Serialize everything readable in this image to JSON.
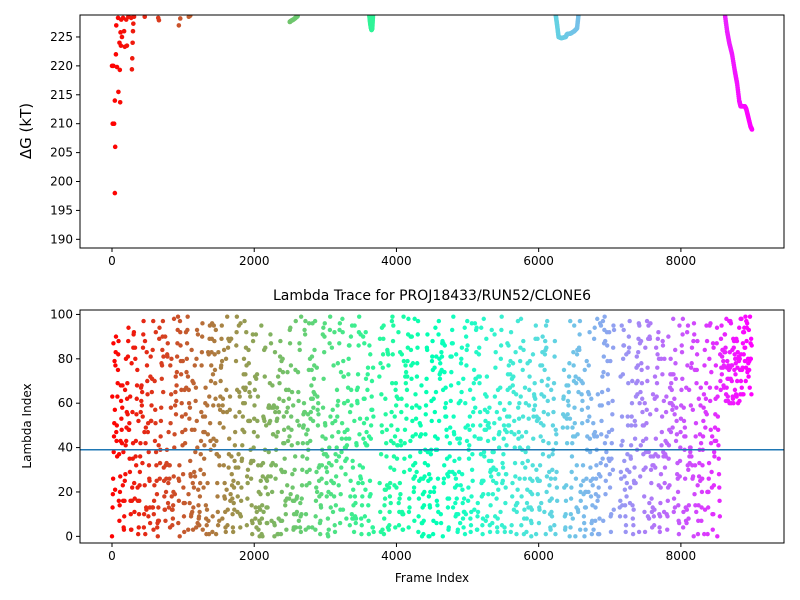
{
  "chart_data": [
    {
      "type": "scatter",
      "title": "",
      "xlabel": "",
      "ylabel": "ΔG (kT)",
      "xlim": [
        -450,
        9450
      ],
      "ylim": [
        188.5,
        228.8
      ],
      "xticks": [
        0,
        2000,
        4000,
        6000,
        8000
      ],
      "xtick_labels": [
        "0",
        "2000",
        "4000",
        "6000",
        "8000"
      ],
      "yticks": [
        190,
        195,
        200,
        205,
        210,
        215,
        220,
        225
      ],
      "ytick_labels": [
        "190",
        "195",
        "200",
        "205",
        "210",
        "215",
        "220",
        "225"
      ],
      "colormap": "rainbow (red at low frame index → violet at high frame index)",
      "x_color_range": [
        0,
        9000
      ],
      "grid": false,
      "points": [
        {
          "x": 0,
          "y": 220
        },
        {
          "x": 10,
          "y": 220
        },
        {
          "x": 20,
          "y": 220
        },
        {
          "x": 30,
          "y": 210
        },
        {
          "x": 10,
          "y": 210
        },
        {
          "x": 40,
          "y": 198
        },
        {
          "x": 45,
          "y": 206
        },
        {
          "x": 40,
          "y": 214
        },
        {
          "x": 55,
          "y": 222
        },
        {
          "x": 60,
          "y": 227
        },
        {
          "x": 70,
          "y": 219.8
        },
        {
          "x": 85,
          "y": 228.3
        },
        {
          "x": 90,
          "y": 215.5
        },
        {
          "x": 105,
          "y": 224
        },
        {
          "x": 110,
          "y": 219.3
        },
        {
          "x": 115,
          "y": 213.7
        },
        {
          "x": 120,
          "y": 225.8
        },
        {
          "x": 125,
          "y": 223.5
        },
        {
          "x": 130,
          "y": 228
        },
        {
          "x": 140,
          "y": 225
        },
        {
          "x": 155,
          "y": 228.3
        },
        {
          "x": 170,
          "y": 226
        },
        {
          "x": 180,
          "y": 223.3
        },
        {
          "x": 200,
          "y": 228
        },
        {
          "x": 210,
          "y": 223.5
        },
        {
          "x": 230,
          "y": 228.5
        },
        {
          "x": 270,
          "y": 228.3
        },
        {
          "x": 280,
          "y": 219.4
        },
        {
          "x": 285,
          "y": 221.3
        },
        {
          "x": 290,
          "y": 224
        },
        {
          "x": 295,
          "y": 226
        },
        {
          "x": 300,
          "y": 227.3
        },
        {
          "x": 310,
          "y": 228.5
        },
        {
          "x": 460,
          "y": 228.5
        },
        {
          "x": 650,
          "y": 228.3
        },
        {
          "x": 660,
          "y": 227.9
        },
        {
          "x": 940,
          "y": 227
        },
        {
          "x": 960,
          "y": 228.2
        },
        {
          "x": 1080,
          "y": 228.5
        },
        {
          "x": 1100,
          "y": 228.7
        },
        {
          "x": 2500,
          "y": 227.6
        },
        {
          "x": 2520,
          "y": 227.8
        },
        {
          "x": 2550,
          "y": 228
        },
        {
          "x": 2580,
          "y": 228.3
        },
        {
          "x": 2610,
          "y": 228.6
        },
        {
          "x": 3620,
          "y": 228.7
        },
        {
          "x": 3630,
          "y": 227.5
        },
        {
          "x": 3640,
          "y": 226.7
        },
        {
          "x": 3650,
          "y": 226.2
        },
        {
          "x": 3660,
          "y": 226.5
        },
        {
          "x": 3670,
          "y": 228.7
        },
        {
          "x": 6240,
          "y": 228.8
        },
        {
          "x": 6260,
          "y": 227
        },
        {
          "x": 6280,
          "y": 225
        },
        {
          "x": 6320,
          "y": 224.8
        },
        {
          "x": 6380,
          "y": 225
        },
        {
          "x": 6400,
          "y": 225.5
        },
        {
          "x": 6450,
          "y": 225.6
        },
        {
          "x": 6500,
          "y": 226
        },
        {
          "x": 6540,
          "y": 226.5
        },
        {
          "x": 6560,
          "y": 228.8
        },
        {
          "x": 8620,
          "y": 228.8
        },
        {
          "x": 8650,
          "y": 226
        },
        {
          "x": 8680,
          "y": 224
        },
        {
          "x": 8720,
          "y": 222
        },
        {
          "x": 8760,
          "y": 219
        },
        {
          "x": 8790,
          "y": 217
        },
        {
          "x": 8820,
          "y": 214
        },
        {
          "x": 8840,
          "y": 213
        },
        {
          "x": 8900,
          "y": 213
        },
        {
          "x": 8920,
          "y": 212.5
        },
        {
          "x": 8950,
          "y": 211
        },
        {
          "x": 8980,
          "y": 209.5
        },
        {
          "x": 9000,
          "y": 209
        }
      ]
    },
    {
      "type": "scatter",
      "title": "Lambda Trace for PROJ18433/RUN52/CLONE6",
      "xlabel": "Frame Index",
      "ylabel": "Lambda Index",
      "xlim": [
        -450,
        9450
      ],
      "ylim": [
        -3,
        102
      ],
      "xticks": [
        0,
        2000,
        4000,
        6000,
        8000
      ],
      "xtick_labels": [
        "0",
        "2000",
        "4000",
        "6000",
        "8000"
      ],
      "yticks": [
        0,
        20,
        40,
        60,
        80,
        100
      ],
      "ytick_labels": [
        "0",
        "20",
        "40",
        "60",
        "80",
        "100"
      ],
      "colormap": "rainbow (red at low frame index → violet at high frame index)",
      "x_color_range": [
        0,
        9000
      ],
      "grid": false,
      "frame_count": 9000,
      "lambda_range": [
        0,
        99
      ],
      "trace_description": "dense lambda-index samples spanning 0–99 across frames 0–9000; gaps of low density near frames 3700, 6300 and 7100; frames 8500–9000 concentrated between 60 and 99",
      "hline": {
        "y": 39,
        "color": "#1f77b4"
      }
    }
  ]
}
